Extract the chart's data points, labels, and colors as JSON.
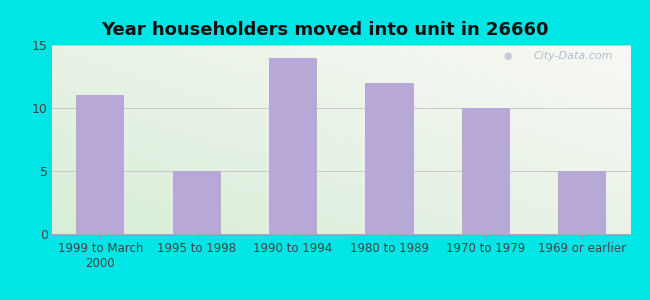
{
  "title": "Year householders moved into unit in 26660",
  "categories": [
    "1999 to March\n2000",
    "1995 to 1998",
    "1990 to 1994",
    "1980 to 1989",
    "1970 to 1979",
    "1969 or earlier"
  ],
  "values": [
    11,
    5,
    14,
    12,
    10,
    5
  ],
  "bar_color": "#b8a8d8",
  "ylim": [
    0,
    15
  ],
  "yticks": [
    0,
    5,
    10,
    15
  ],
  "background_outer": "#00e5e5",
  "background_inner_topleft": "#e8f5ee",
  "background_inner_topright": "#f0f0f0",
  "background_inner_bottom": "#d8eed8",
  "grid_color": "#c8c8c8",
  "title_fontsize": 13,
  "tick_fontsize": 8.5,
  "watermark": "City-Data.com"
}
